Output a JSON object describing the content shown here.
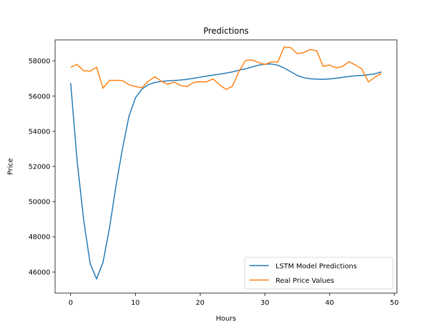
{
  "chart_data": {
    "type": "line",
    "title": "Predictions",
    "xlabel": "Hours",
    "ylabel": "Price",
    "xlim": [
      -2.4,
      50.4
    ],
    "ylim": [
      44800,
      59200
    ],
    "xticks": [
      0,
      10,
      20,
      30,
      40,
      50
    ],
    "yticks": [
      46000,
      48000,
      50000,
      52000,
      54000,
      56000,
      58000
    ],
    "xtick_labels": [
      "0",
      "10",
      "20",
      "30",
      "40",
      "50"
    ],
    "ytick_labels": [
      "46000",
      "48000",
      "50000",
      "52000",
      "54000",
      "56000",
      "58000"
    ],
    "grid": false,
    "legend_position": "lower-right",
    "x": [
      0,
      1,
      2,
      3,
      4,
      5,
      6,
      7,
      8,
      9,
      10,
      11,
      12,
      13,
      14,
      15,
      16,
      17,
      18,
      19,
      20,
      21,
      22,
      23,
      24,
      25,
      26,
      27,
      28,
      29,
      30,
      31,
      32,
      33,
      34,
      35,
      36,
      37,
      38,
      39,
      40,
      41,
      42,
      43,
      44,
      45,
      46,
      47,
      48
    ],
    "series": [
      {
        "name": "LSTM Model Predictions",
        "color": "#1f77b4",
        "values": [
          56750,
          52300,
          49000,
          46500,
          45600,
          46550,
          48500,
          50900,
          53000,
          54850,
          55900,
          56400,
          56650,
          56780,
          56840,
          56870,
          56890,
          56920,
          56960,
          57020,
          57080,
          57140,
          57200,
          57250,
          57310,
          57380,
          57480,
          57550,
          57660,
          57760,
          57820,
          57830,
          57760,
          57600,
          57390,
          57180,
          57050,
          56990,
          56970,
          56960,
          56980,
          57020,
          57070,
          57120,
          57160,
          57180,
          57220,
          57270,
          57380
        ]
      },
      {
        "name": "Real Price Values",
        "color": "#ff7f0e",
        "values": [
          57650,
          57800,
          57450,
          57420,
          57650,
          56450,
          56900,
          56900,
          56880,
          56650,
          56550,
          56480,
          56850,
          57100,
          56850,
          56680,
          56800,
          56600,
          56550,
          56780,
          56830,
          56820,
          56980,
          56650,
          56380,
          56570,
          57400,
          58030,
          58060,
          57920,
          57800,
          57950,
          57950,
          58800,
          58760,
          58420,
          58480,
          58660,
          58580,
          57700,
          57770,
          57610,
          57690,
          57960,
          57770,
          57540,
          56810,
          57080,
          57300
        ]
      }
    ]
  }
}
